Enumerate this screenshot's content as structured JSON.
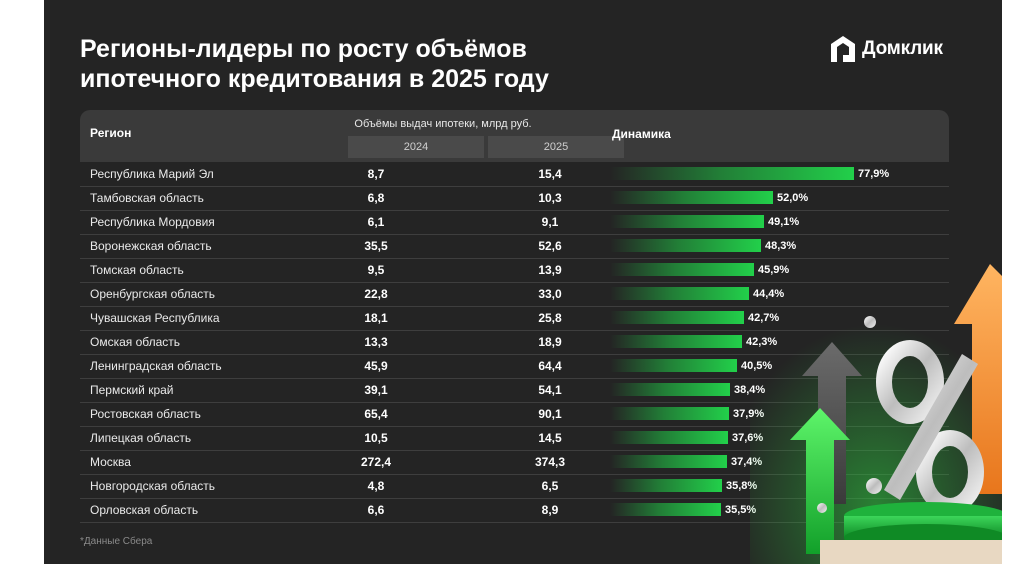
{
  "title_line1": "Регионы-лидеры по росту объёмов",
  "title_line2": "ипотечного кредитования в 2025 году",
  "logo": {
    "text": "Домклик",
    "icon": "house-logo-icon"
  },
  "header": {
    "region": "Регион",
    "group": "Объёмы выдач ипотеки, млрд руб.",
    "year1": "2024",
    "year2": "2025",
    "dynamics": "Динамика"
  },
  "footnote": "*Данные Сбера",
  "colors": {
    "background": "#242424",
    "header": "#3a3a3a",
    "bar": "#22d04a"
  },
  "chart_data": {
    "type": "table",
    "columns": [
      "Регион",
      "2024",
      "2025",
      "Динамика"
    ],
    "rows": [
      {
        "region": "Республика Марий Эл",
        "v2024": "8,7",
        "v2025": "15,4",
        "growth": 77.9,
        "growth_label": "77,9%"
      },
      {
        "region": "Тамбовская область",
        "v2024": "6,8",
        "v2025": "10,3",
        "growth": 52.0,
        "growth_label": "52,0%"
      },
      {
        "region": "Республика Мордовия",
        "v2024": "6,1",
        "v2025": "9,1",
        "growth": 49.1,
        "growth_label": "49,1%"
      },
      {
        "region": "Воронежская область",
        "v2024": "35,5",
        "v2025": "52,6",
        "growth": 48.3,
        "growth_label": "48,3%"
      },
      {
        "region": "Томская область",
        "v2024": "9,5",
        "v2025": "13,9",
        "growth": 45.9,
        "growth_label": "45,9%"
      },
      {
        "region": "Оренбургская область",
        "v2024": "22,8",
        "v2025": "33,0",
        "growth": 44.4,
        "growth_label": "44,4%"
      },
      {
        "region": "Чувашская Республика",
        "v2024": "18,1",
        "v2025": "25,8",
        "growth": 42.7,
        "growth_label": "42,7%"
      },
      {
        "region": "Омская область",
        "v2024": "13,3",
        "v2025": "18,9",
        "growth": 42.3,
        "growth_label": "42,3%"
      },
      {
        "region": "Ленинградская область",
        "v2024": "45,9",
        "v2025": "64,4",
        "growth": 40.5,
        "growth_label": "40,5%"
      },
      {
        "region": "Пермский край",
        "v2024": "39,1",
        "v2025": "54,1",
        "growth": 38.4,
        "growth_label": "38,4%"
      },
      {
        "region": "Ростовская область",
        "v2024": "65,4",
        "v2025": "90,1",
        "growth": 37.9,
        "growth_label": "37,9%"
      },
      {
        "region": "Липецкая область",
        "v2024": "10,5",
        "v2025": "14,5",
        "growth": 37.6,
        "growth_label": "37,6%"
      },
      {
        "region": "Москва",
        "v2024": "272,4",
        "v2025": "374,3",
        "growth": 37.4,
        "growth_label": "37,4%"
      },
      {
        "region": "Новгородская область",
        "v2024": "4,8",
        "v2025": "6,5",
        "growth": 35.8,
        "growth_label": "35,8%"
      },
      {
        "region": "Орловская область",
        "v2024": "6,6",
        "v2025": "8,9",
        "growth": 35.5,
        "growth_label": "35,5%"
      }
    ]
  }
}
